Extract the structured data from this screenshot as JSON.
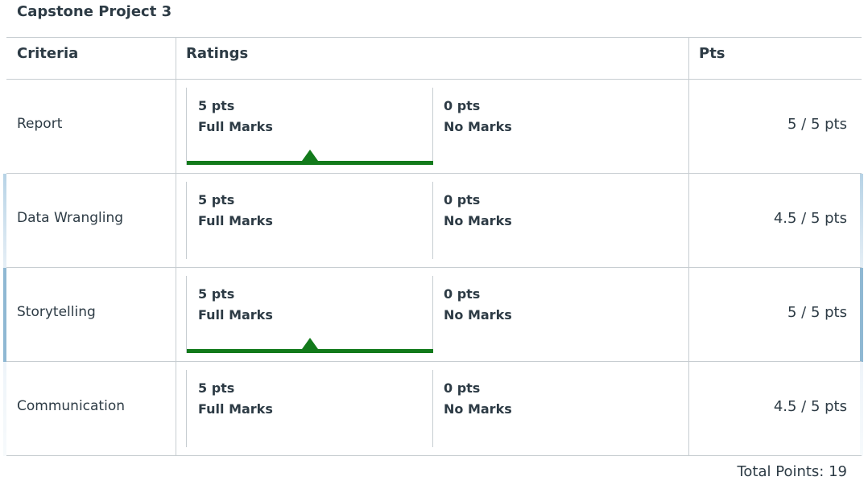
{
  "title": "Capstone Project 3",
  "headers": {
    "criteria": "Criteria",
    "ratings": "Ratings",
    "pts": "Pts"
  },
  "rows": [
    {
      "criterion": "Report",
      "full": {
        "pts": "5 pts",
        "label": "Full Marks"
      },
      "none": {
        "pts": "0 pts",
        "label": "No Marks"
      },
      "score": "5 / 5 pts",
      "selected": "full"
    },
    {
      "criterion": "Data Wrangling",
      "full": {
        "pts": "5 pts",
        "label": "Full Marks"
      },
      "none": {
        "pts": "0 pts",
        "label": "No Marks"
      },
      "score": "4.5 / 5 pts",
      "selected": ""
    },
    {
      "criterion": "Storytelling",
      "full": {
        "pts": "5 pts",
        "label": "Full Marks"
      },
      "none": {
        "pts": "0 pts",
        "label": "No Marks"
      },
      "score": "5 / 5 pts",
      "selected": "full"
    },
    {
      "criterion": "Communication",
      "full": {
        "pts": "5 pts",
        "label": "Full Marks"
      },
      "none": {
        "pts": "0 pts",
        "label": "No Marks"
      },
      "score": "4.5 / 5 pts",
      "selected": ""
    }
  ],
  "total": "Total Points: 19",
  "colors": {
    "selected": "#127a1b",
    "border": "#c7cdd1",
    "text": "#2d3b45"
  }
}
